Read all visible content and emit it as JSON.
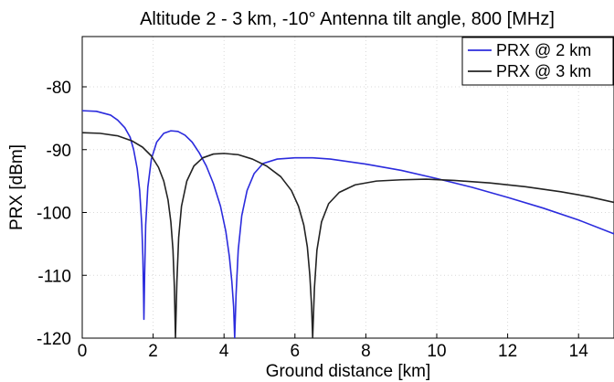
{
  "chart_data": {
    "type": "line",
    "title": "Altitude 2 - 3 km, -10° Antenna tilt angle, 800 [MHz]",
    "xlabel": "Ground distance [km]",
    "ylabel": "PRX [dBm]",
    "xlim": [
      0,
      15
    ],
    "ylim": [
      -120,
      -72
    ],
    "xticks": [
      0,
      2,
      4,
      6,
      8,
      10,
      12,
      14
    ],
    "yticks": [
      -120,
      -110,
      -100,
      -90,
      -80
    ],
    "grid": true,
    "legend_position": "top-right",
    "series": [
      {
        "name": "PRX @ 2 km",
        "color": "#2b2bdd",
        "points": [
          [
            0,
            -83.8
          ],
          [
            0.4,
            -83.9
          ],
          [
            0.8,
            -84.5
          ],
          [
            1.0,
            -85.3
          ],
          [
            1.2,
            -86.5
          ],
          [
            1.35,
            -88.0
          ],
          [
            1.45,
            -90.0
          ],
          [
            1.55,
            -93.0
          ],
          [
            1.62,
            -96.5
          ],
          [
            1.68,
            -102.0
          ],
          [
            1.71,
            -107.0
          ],
          [
            1.73,
            -113.0
          ],
          [
            1.74,
            -117.0
          ],
          [
            1.76,
            -110.0
          ],
          [
            1.79,
            -102.0
          ],
          [
            1.85,
            -96.0
          ],
          [
            1.95,
            -91.5
          ],
          [
            2.1,
            -88.8
          ],
          [
            2.3,
            -87.4
          ],
          [
            2.5,
            -87.0
          ],
          [
            2.7,
            -87.1
          ],
          [
            2.9,
            -87.7
          ],
          [
            3.1,
            -88.8
          ],
          [
            3.3,
            -90.5
          ],
          [
            3.5,
            -92.6
          ],
          [
            3.7,
            -95.4
          ],
          [
            3.9,
            -99.0
          ],
          [
            4.05,
            -103.0
          ],
          [
            4.15,
            -107.0
          ],
          [
            4.22,
            -111.0
          ],
          [
            4.27,
            -115.0
          ],
          [
            4.3,
            -120.0
          ],
          [
            4.34,
            -113.0
          ],
          [
            4.4,
            -106.0
          ],
          [
            4.5,
            -100.5
          ],
          [
            4.65,
            -96.5
          ],
          [
            4.85,
            -93.8
          ],
          [
            5.1,
            -92.2
          ],
          [
            5.5,
            -91.5
          ],
          [
            6.0,
            -91.3
          ],
          [
            6.5,
            -91.3
          ],
          [
            7.0,
            -91.5
          ],
          [
            8.0,
            -92.3
          ],
          [
            9.0,
            -93.3
          ],
          [
            10.0,
            -94.6
          ],
          [
            11.0,
            -96.0
          ],
          [
            12.0,
            -97.6
          ],
          [
            13.0,
            -99.3
          ],
          [
            14.0,
            -101.2
          ],
          [
            15.0,
            -103.4
          ]
        ]
      },
      {
        "name": "PRX @ 3 km",
        "color": "#222222",
        "points": [
          [
            0,
            -87.3
          ],
          [
            0.5,
            -87.4
          ],
          [
            1.0,
            -87.8
          ],
          [
            1.4,
            -88.6
          ],
          [
            1.7,
            -89.6
          ],
          [
            1.95,
            -91.0
          ],
          [
            2.15,
            -92.8
          ],
          [
            2.3,
            -95.0
          ],
          [
            2.42,
            -98.0
          ],
          [
            2.5,
            -101.5
          ],
          [
            2.56,
            -106.0
          ],
          [
            2.6,
            -112.0
          ],
          [
            2.63,
            -120.0
          ],
          [
            2.67,
            -111.0
          ],
          [
            2.72,
            -104.0
          ],
          [
            2.8,
            -99.0
          ],
          [
            2.95,
            -95.0
          ],
          [
            3.15,
            -92.6
          ],
          [
            3.4,
            -91.3
          ],
          [
            3.7,
            -90.7
          ],
          [
            4.0,
            -90.6
          ],
          [
            4.4,
            -90.8
          ],
          [
            4.8,
            -91.5
          ],
          [
            5.2,
            -92.6
          ],
          [
            5.6,
            -94.3
          ],
          [
            5.9,
            -96.5
          ],
          [
            6.1,
            -99.0
          ],
          [
            6.25,
            -102.0
          ],
          [
            6.35,
            -105.5
          ],
          [
            6.42,
            -110.0
          ],
          [
            6.47,
            -115.0
          ],
          [
            6.5,
            -120.0
          ],
          [
            6.55,
            -112.0
          ],
          [
            6.62,
            -106.0
          ],
          [
            6.75,
            -101.5
          ],
          [
            6.95,
            -98.6
          ],
          [
            7.25,
            -96.8
          ],
          [
            7.7,
            -95.6
          ],
          [
            8.3,
            -95.0
          ],
          [
            9.0,
            -94.8
          ],
          [
            9.7,
            -94.7
          ],
          [
            10.5,
            -94.9
          ],
          [
            11.5,
            -95.3
          ],
          [
            12.5,
            -95.9
          ],
          [
            13.5,
            -96.7
          ],
          [
            14.3,
            -97.5
          ],
          [
            15.0,
            -98.4
          ]
        ]
      }
    ]
  }
}
